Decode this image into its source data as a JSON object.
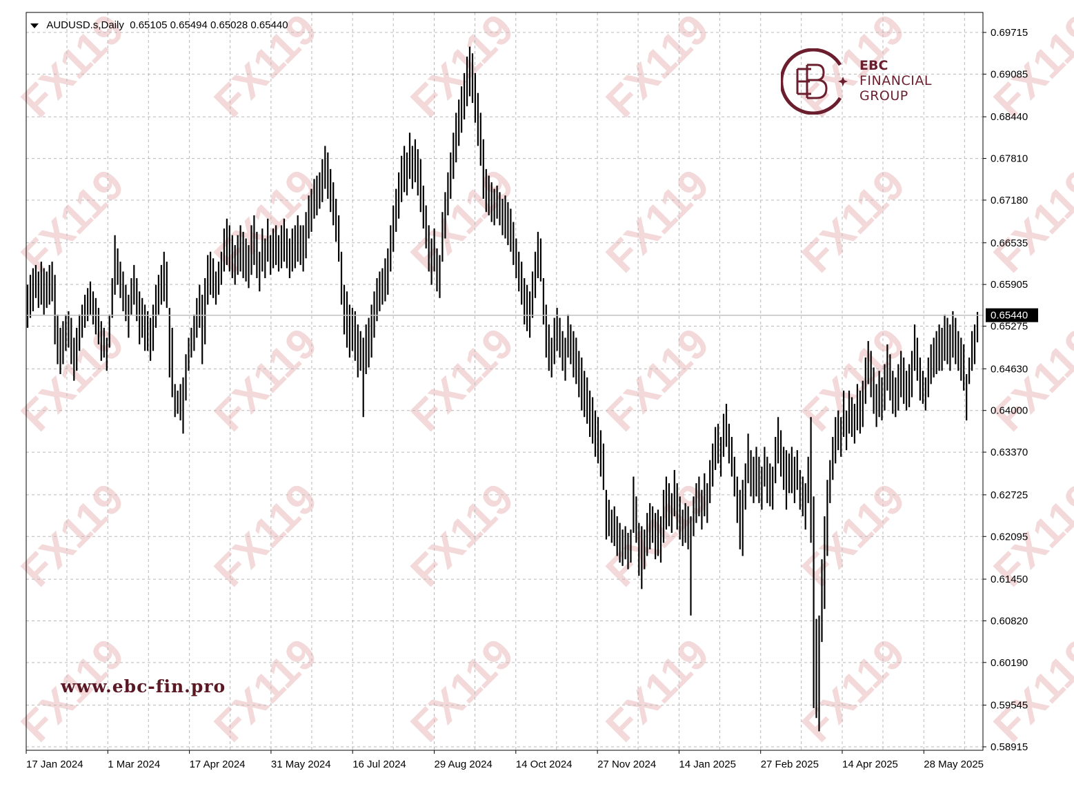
{
  "header": {
    "symbol": "AUDUSD.s,Daily",
    "ohlc": "0.65105 0.65494 0.65028 0.65440"
  },
  "watermark": "FX119",
  "logo": {
    "line1": "EBC",
    "line2": "FINANCIAL",
    "line3": "GROUP",
    "color": "#6b1f2e"
  },
  "website": "www.ebc-fin.pro",
  "current_price_label": "0.65440",
  "chart_data": {
    "type": "ohlc",
    "symbol": "AUDUSD.s",
    "timeframe": "Daily",
    "last_close": 0.6544,
    "y_ticks": [
      "0.69715",
      "0.69085",
      "0.68440",
      "0.67810",
      "0.67180",
      "0.66535",
      "0.65905",
      "0.65275",
      "0.64630",
      "0.64000",
      "0.63370",
      "0.62725",
      "0.62095",
      "0.61450",
      "0.60820",
      "0.60190",
      "0.59545",
      "0.58915"
    ],
    "ylim": [
      0.58915,
      0.69715
    ],
    "x_ticks": [
      "17 Jan 2024",
      "1 Mar 2024",
      "17 Apr 2024",
      "31 May 2024",
      "16 Jul 2024",
      "29 Aug 2024",
      "14 Oct 2024",
      "27 Nov 2024",
      "14 Jan 2025",
      "27 Feb 2025",
      "14 Apr 2025",
      "28 May 2025"
    ],
    "grid": true,
    "bars_hl": [
      [
        0.659,
        0.6525
      ],
      [
        0.6605,
        0.654
      ],
      [
        0.6615,
        0.655
      ],
      [
        0.662,
        0.657
      ],
      [
        0.661,
        0.6555
      ],
      [
        0.6625,
        0.656
      ],
      [
        0.6615,
        0.6545
      ],
      [
        0.661,
        0.6555
      ],
      [
        0.662,
        0.656
      ],
      [
        0.6625,
        0.6565
      ],
      [
        0.6605,
        0.65
      ],
      [
        0.6545,
        0.647
      ],
      [
        0.6525,
        0.6455
      ],
      [
        0.6535,
        0.647
      ],
      [
        0.6545,
        0.649
      ],
      [
        0.655,
        0.6495
      ],
      [
        0.654,
        0.647
      ],
      [
        0.651,
        0.6445
      ],
      [
        0.6525,
        0.646
      ],
      [
        0.6545,
        0.649
      ],
      [
        0.656,
        0.651
      ],
      [
        0.6575,
        0.6525
      ],
      [
        0.6585,
        0.6535
      ],
      [
        0.6595,
        0.6545
      ],
      [
        0.658,
        0.653
      ],
      [
        0.657,
        0.6515
      ],
      [
        0.6555,
        0.65
      ],
      [
        0.6535,
        0.6475
      ],
      [
        0.6525,
        0.648
      ],
      [
        0.651,
        0.646
      ],
      [
        0.6545,
        0.6495
      ],
      [
        0.66,
        0.654
      ],
      [
        0.6665,
        0.6575
      ],
      [
        0.6645,
        0.659
      ],
      [
        0.6625,
        0.657
      ],
      [
        0.661,
        0.655
      ],
      [
        0.659,
        0.6535
      ],
      [
        0.6575,
        0.651
      ],
      [
        0.66,
        0.6545
      ],
      [
        0.662,
        0.656
      ],
      [
        0.66,
        0.6535
      ],
      [
        0.658,
        0.65
      ],
      [
        0.657,
        0.651
      ],
      [
        0.656,
        0.649
      ],
      [
        0.655,
        0.649
      ],
      [
        0.654,
        0.6475
      ],
      [
        0.656,
        0.649
      ],
      [
        0.659,
        0.6525
      ],
      [
        0.6605,
        0.6545
      ],
      [
        0.662,
        0.656
      ],
      [
        0.664,
        0.6565
      ],
      [
        0.6625,
        0.6555
      ],
      [
        0.6555,
        0.645
      ],
      [
        0.6525,
        0.642
      ],
      [
        0.644,
        0.639
      ],
      [
        0.643,
        0.6395
      ],
      [
        0.644,
        0.6385
      ],
      [
        0.645,
        0.6365
      ],
      [
        0.6485,
        0.6415
      ],
      [
        0.651,
        0.646
      ],
      [
        0.6525,
        0.648
      ],
      [
        0.6545,
        0.649
      ],
      [
        0.657,
        0.651
      ],
      [
        0.659,
        0.6525
      ],
      [
        0.6575,
        0.647
      ],
      [
        0.66,
        0.65
      ],
      [
        0.6635,
        0.656
      ],
      [
        0.664,
        0.6575
      ],
      [
        0.663,
        0.657
      ],
      [
        0.661,
        0.656
      ],
      [
        0.6625,
        0.6575
      ],
      [
        0.664,
        0.659
      ],
      [
        0.6675,
        0.661
      ],
      [
        0.669,
        0.662
      ],
      [
        0.668,
        0.661
      ],
      [
        0.6665,
        0.66
      ],
      [
        0.665,
        0.659
      ],
      [
        0.6665,
        0.6605
      ],
      [
        0.668,
        0.661
      ],
      [
        0.667,
        0.66
      ],
      [
        0.666,
        0.6595
      ],
      [
        0.665,
        0.6585
      ],
      [
        0.668,
        0.6605
      ],
      [
        0.6695,
        0.662
      ],
      [
        0.667,
        0.66
      ],
      [
        0.664,
        0.658
      ],
      [
        0.6675,
        0.661
      ],
      [
        0.666,
        0.66
      ],
      [
        0.669,
        0.6625
      ],
      [
        0.6665,
        0.6605
      ],
      [
        0.6675,
        0.6615
      ],
      [
        0.668,
        0.662
      ],
      [
        0.6665,
        0.661
      ],
      [
        0.668,
        0.6615
      ],
      [
        0.669,
        0.6625
      ],
      [
        0.6675,
        0.6615
      ],
      [
        0.666,
        0.66
      ],
      [
        0.6675,
        0.661
      ],
      [
        0.668,
        0.6615
      ],
      [
        0.6695,
        0.6625
      ],
      [
        0.668,
        0.662
      ],
      [
        0.668,
        0.661
      ],
      [
        0.67,
        0.663
      ],
      [
        0.6725,
        0.666
      ],
      [
        0.6735,
        0.667
      ],
      [
        0.675,
        0.669
      ],
      [
        0.6755,
        0.6695
      ],
      [
        0.676,
        0.6705
      ],
      [
        0.678,
        0.6715
      ],
      [
        0.68,
        0.6735
      ],
      [
        0.679,
        0.672
      ],
      [
        0.6765,
        0.67
      ],
      [
        0.6745,
        0.668
      ],
      [
        0.672,
        0.6655
      ],
      [
        0.6695,
        0.6625
      ],
      [
        0.664,
        0.656
      ],
      [
        0.659,
        0.6515
      ],
      [
        0.658,
        0.6495
      ],
      [
        0.656,
        0.648
      ],
      [
        0.6555,
        0.649
      ],
      [
        0.655,
        0.6475
      ],
      [
        0.653,
        0.645
      ],
      [
        0.652,
        0.646
      ],
      [
        0.651,
        0.639
      ],
      [
        0.653,
        0.6455
      ],
      [
        0.654,
        0.6465
      ],
      [
        0.656,
        0.648
      ],
      [
        0.658,
        0.651
      ],
      [
        0.66,
        0.6535
      ],
      [
        0.661,
        0.655
      ],
      [
        0.6615,
        0.656
      ],
      [
        0.663,
        0.6565
      ],
      [
        0.6645,
        0.6575
      ],
      [
        0.668,
        0.661
      ],
      [
        0.671,
        0.664
      ],
      [
        0.6735,
        0.667
      ],
      [
        0.676,
        0.669
      ],
      [
        0.6785,
        0.6715
      ],
      [
        0.68,
        0.673
      ],
      [
        0.679,
        0.6725
      ],
      [
        0.682,
        0.675
      ],
      [
        0.68,
        0.6735
      ],
      [
        0.681,
        0.6745
      ],
      [
        0.6795,
        0.6725
      ],
      [
        0.678,
        0.67
      ],
      [
        0.674,
        0.6675
      ],
      [
        0.671,
        0.6645
      ],
      [
        0.668,
        0.661
      ],
      [
        0.666,
        0.659
      ],
      [
        0.6675,
        0.661
      ],
      [
        0.6645,
        0.658
      ],
      [
        0.6635,
        0.657
      ],
      [
        0.67,
        0.6625
      ],
      [
        0.673,
        0.666
      ],
      [
        0.676,
        0.6695
      ],
      [
        0.679,
        0.672
      ],
      [
        0.682,
        0.675
      ],
      [
        0.685,
        0.6775
      ],
      [
        0.687,
        0.68
      ],
      [
        0.689,
        0.682
      ],
      [
        0.691,
        0.684
      ],
      [
        0.6935,
        0.686
      ],
      [
        0.695,
        0.6875
      ],
      [
        0.694,
        0.6865
      ],
      [
        0.691,
        0.6835
      ],
      [
        0.688,
        0.68
      ],
      [
        0.685,
        0.677
      ],
      [
        0.681,
        0.672
      ],
      [
        0.6765,
        0.67
      ],
      [
        0.6755,
        0.6695
      ],
      [
        0.6745,
        0.6685
      ],
      [
        0.6735,
        0.668
      ],
      [
        0.674,
        0.669
      ],
      [
        0.673,
        0.668
      ],
      [
        0.672,
        0.6665
      ],
      [
        0.6725,
        0.666
      ],
      [
        0.6715,
        0.665
      ],
      [
        0.6705,
        0.664
      ],
      [
        0.6685,
        0.662
      ],
      [
        0.666,
        0.66
      ],
      [
        0.664,
        0.658
      ],
      [
        0.6625,
        0.656
      ],
      [
        0.66,
        0.653
      ],
      [
        0.659,
        0.652
      ],
      [
        0.658,
        0.651
      ],
      [
        0.661,
        0.654
      ],
      [
        0.664,
        0.657
      ],
      [
        0.667,
        0.66
      ],
      [
        0.666,
        0.6595
      ],
      [
        0.66,
        0.653
      ],
      [
        0.656,
        0.648
      ],
      [
        0.653,
        0.646
      ],
      [
        0.651,
        0.645
      ],
      [
        0.654,
        0.647
      ],
      [
        0.6555,
        0.649
      ],
      [
        0.654,
        0.648
      ],
      [
        0.652,
        0.646
      ],
      [
        0.651,
        0.6445
      ],
      [
        0.6545,
        0.648
      ],
      [
        0.653,
        0.647
      ],
      [
        0.652,
        0.645
      ],
      [
        0.651,
        0.644
      ],
      [
        0.649,
        0.642
      ],
      [
        0.648,
        0.64
      ],
      [
        0.646,
        0.639
      ],
      [
        0.645,
        0.638
      ],
      [
        0.643,
        0.636
      ],
      [
        0.642,
        0.635
      ],
      [
        0.64,
        0.633
      ],
      [
        0.639,
        0.632
      ],
      [
        0.637,
        0.63
      ],
      [
        0.635,
        0.628
      ],
      [
        0.628,
        0.6205
      ],
      [
        0.6265,
        0.621
      ],
      [
        0.625,
        0.62
      ],
      [
        0.6255,
        0.6195
      ],
      [
        0.624,
        0.618
      ],
      [
        0.623,
        0.617
      ],
      [
        0.622,
        0.6165
      ],
      [
        0.6225,
        0.6175
      ],
      [
        0.6215,
        0.616
      ],
      [
        0.622,
        0.617
      ],
      [
        0.63,
        0.6215
      ],
      [
        0.627,
        0.62
      ],
      [
        0.623,
        0.615
      ],
      [
        0.6225,
        0.613
      ],
      [
        0.622,
        0.616
      ],
      [
        0.6245,
        0.618
      ],
      [
        0.626,
        0.619
      ],
      [
        0.6255,
        0.62
      ],
      [
        0.6245,
        0.6175
      ],
      [
        0.625,
        0.618
      ],
      [
        0.624,
        0.617
      ],
      [
        0.628,
        0.62
      ],
      [
        0.63,
        0.622
      ],
      [
        0.629,
        0.6225
      ],
      [
        0.6275,
        0.6215
      ],
      [
        0.631,
        0.624
      ],
      [
        0.629,
        0.622
      ],
      [
        0.627,
        0.6205
      ],
      [
        0.625,
        0.6195
      ],
      [
        0.626,
        0.62
      ],
      [
        0.6255,
        0.619
      ],
      [
        0.624,
        0.609
      ],
      [
        0.627,
        0.621
      ],
      [
        0.629,
        0.623
      ],
      [
        0.63,
        0.624
      ],
      [
        0.628,
        0.622
      ],
      [
        0.6305,
        0.624
      ],
      [
        0.629,
        0.623
      ],
      [
        0.6325,
        0.626
      ],
      [
        0.635,
        0.6285
      ],
      [
        0.6375,
        0.631
      ],
      [
        0.638,
        0.632
      ],
      [
        0.636,
        0.63
      ],
      [
        0.6395,
        0.633
      ],
      [
        0.641,
        0.6345
      ],
      [
        0.638,
        0.632
      ],
      [
        0.636,
        0.63
      ],
      [
        0.633,
        0.627
      ],
      [
        0.63,
        0.623
      ],
      [
        0.628,
        0.619
      ],
      [
        0.6295,
        0.618
      ],
      [
        0.632,
        0.625
      ],
      [
        0.6365,
        0.629
      ],
      [
        0.634,
        0.627
      ],
      [
        0.633,
        0.626
      ],
      [
        0.6345,
        0.627
      ],
      [
        0.633,
        0.626
      ],
      [
        0.6315,
        0.625
      ],
      [
        0.6345,
        0.6285
      ],
      [
        0.633,
        0.626
      ],
      [
        0.632,
        0.6255
      ],
      [
        0.6315,
        0.625
      ],
      [
        0.636,
        0.629
      ],
      [
        0.639,
        0.632
      ],
      [
        0.637,
        0.63
      ],
      [
        0.6345,
        0.628
      ],
      [
        0.634,
        0.625
      ],
      [
        0.6335,
        0.6275
      ],
      [
        0.6345,
        0.6275
      ],
      [
        0.633,
        0.626
      ],
      [
        0.634,
        0.628
      ],
      [
        0.631,
        0.625
      ],
      [
        0.63,
        0.624
      ],
      [
        0.629,
        0.622
      ],
      [
        0.633,
        0.626
      ],
      [
        0.639,
        0.62
      ],
      [
        0.627,
        0.595
      ],
      [
        0.6085,
        0.5935
      ],
      [
        0.609,
        0.5915
      ],
      [
        0.6175,
        0.605
      ],
      [
        0.624,
        0.61
      ],
      [
        0.6295,
        0.618
      ],
      [
        0.6325,
        0.626
      ],
      [
        0.636,
        0.6295
      ],
      [
        0.639,
        0.632
      ],
      [
        0.64,
        0.634
      ],
      [
        0.639,
        0.633
      ],
      [
        0.643,
        0.636
      ],
      [
        0.64,
        0.634
      ],
      [
        0.643,
        0.6365
      ],
      [
        0.642,
        0.636
      ],
      [
        0.641,
        0.635
      ],
      [
        0.644,
        0.637
      ],
      [
        0.643,
        0.6365
      ],
      [
        0.6445,
        0.6375
      ],
      [
        0.648,
        0.641
      ],
      [
        0.6505,
        0.644
      ],
      [
        0.649,
        0.642
      ],
      [
        0.6465,
        0.6395
      ],
      [
        0.644,
        0.6375
      ],
      [
        0.646,
        0.639
      ],
      [
        0.645,
        0.6385
      ],
      [
        0.647,
        0.64
      ],
      [
        0.65,
        0.643
      ],
      [
        0.6485,
        0.6415
      ],
      [
        0.646,
        0.6395
      ],
      [
        0.645,
        0.639
      ],
      [
        0.647,
        0.64
      ],
      [
        0.649,
        0.642
      ],
      [
        0.648,
        0.641
      ],
      [
        0.646,
        0.64
      ],
      [
        0.647,
        0.6405
      ],
      [
        0.649,
        0.642
      ],
      [
        0.653,
        0.646
      ],
      [
        0.651,
        0.6445
      ],
      [
        0.648,
        0.6415
      ],
      [
        0.646,
        0.641
      ],
      [
        0.645,
        0.64
      ],
      [
        0.648,
        0.642
      ],
      [
        0.65,
        0.644
      ],
      [
        0.651,
        0.645
      ],
      [
        0.652,
        0.6455
      ],
      [
        0.653,
        0.646
      ],
      [
        0.6525,
        0.646
      ],
      [
        0.6545,
        0.6475
      ],
      [
        0.654,
        0.647
      ],
      [
        0.653,
        0.646
      ],
      [
        0.655,
        0.648
      ],
      [
        0.654,
        0.647
      ],
      [
        0.652,
        0.646
      ],
      [
        0.651,
        0.6445
      ],
      [
        0.65,
        0.643
      ],
      [
        0.6455,
        0.6385
      ],
      [
        0.648,
        0.644
      ],
      [
        0.652,
        0.646
      ],
      [
        0.653,
        0.647
      ],
      [
        0.6549,
        0.6503
      ]
    ]
  }
}
